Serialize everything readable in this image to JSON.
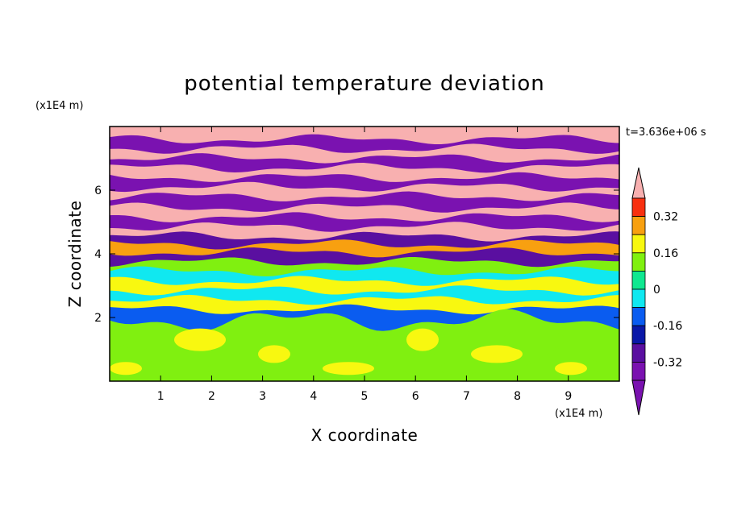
{
  "chart_data": {
    "type": "heatmap",
    "title": "potential temperature deviation",
    "xlabel": "X coordinate",
    "ylabel": "Z coordinate",
    "x_unit": "(x1E4 m)",
    "y_unit": "(x1E4 m)",
    "time_label": "t=3.636e+06 s",
    "xlim": [
      0,
      10
    ],
    "ylim": [
      0,
      8
    ],
    "x_ticks": [
      "1",
      "2",
      "3",
      "4",
      "5",
      "6",
      "7",
      "8",
      "9"
    ],
    "y_ticks": [
      "2",
      "4",
      "6"
    ],
    "colorbar": {
      "levels": [
        -0.4,
        -0.32,
        -0.24,
        -0.16,
        -0.08,
        0,
        0.08,
        0.16,
        0.24,
        0.32,
        0.4
      ],
      "colors": [
        "#7a12b0",
        "#5a0fa0",
        "#0a18a8",
        "#0a5cf0",
        "#10e8f0",
        "#0fe890",
        "#80f010",
        "#f8f810",
        "#f8a010",
        "#f83010",
        "#f8b0b0"
      ],
      "labels": [
        "0.32",
        "0.16",
        "0",
        "-0.16",
        "-0.32"
      ],
      "extend": "both"
    },
    "bands": [
      {
        "z": 7.9,
        "value": 0.45
      },
      {
        "z": 7.6,
        "value": -0.45
      },
      {
        "z": 7.3,
        "value": 0.45
      },
      {
        "z": 7.0,
        "value": -0.45
      },
      {
        "z": 6.7,
        "value": 0.45
      },
      {
        "z": 6.4,
        "value": -0.45
      },
      {
        "z": 6.1,
        "value": 0.45
      },
      {
        "z": 5.8,
        "value": -0.45
      },
      {
        "z": 5.45,
        "value": 0.45
      },
      {
        "z": 5.15,
        "value": -0.45
      },
      {
        "z": 4.85,
        "value": 0.45
      },
      {
        "z": 4.55,
        "value": -0.4
      },
      {
        "z": 4.3,
        "value": 0.2
      },
      {
        "z": 4.05,
        "value": -0.4
      },
      {
        "z": 3.75,
        "value": 0.05
      },
      {
        "z": 3.45,
        "value": -0.12
      },
      {
        "z": 3.15,
        "value": 0.1
      },
      {
        "z": 2.85,
        "value": -0.1
      },
      {
        "z": 2.55,
        "value": 0.15
      },
      {
        "z": 2.25,
        "value": -0.2
      },
      {
        "z": 1.9,
        "value": 0.04
      },
      {
        "z": 1.4,
        "value": 0.06
      },
      {
        "z": 0.9,
        "value": 0.03
      },
      {
        "z": 0.4,
        "value": 0.07
      }
    ]
  }
}
